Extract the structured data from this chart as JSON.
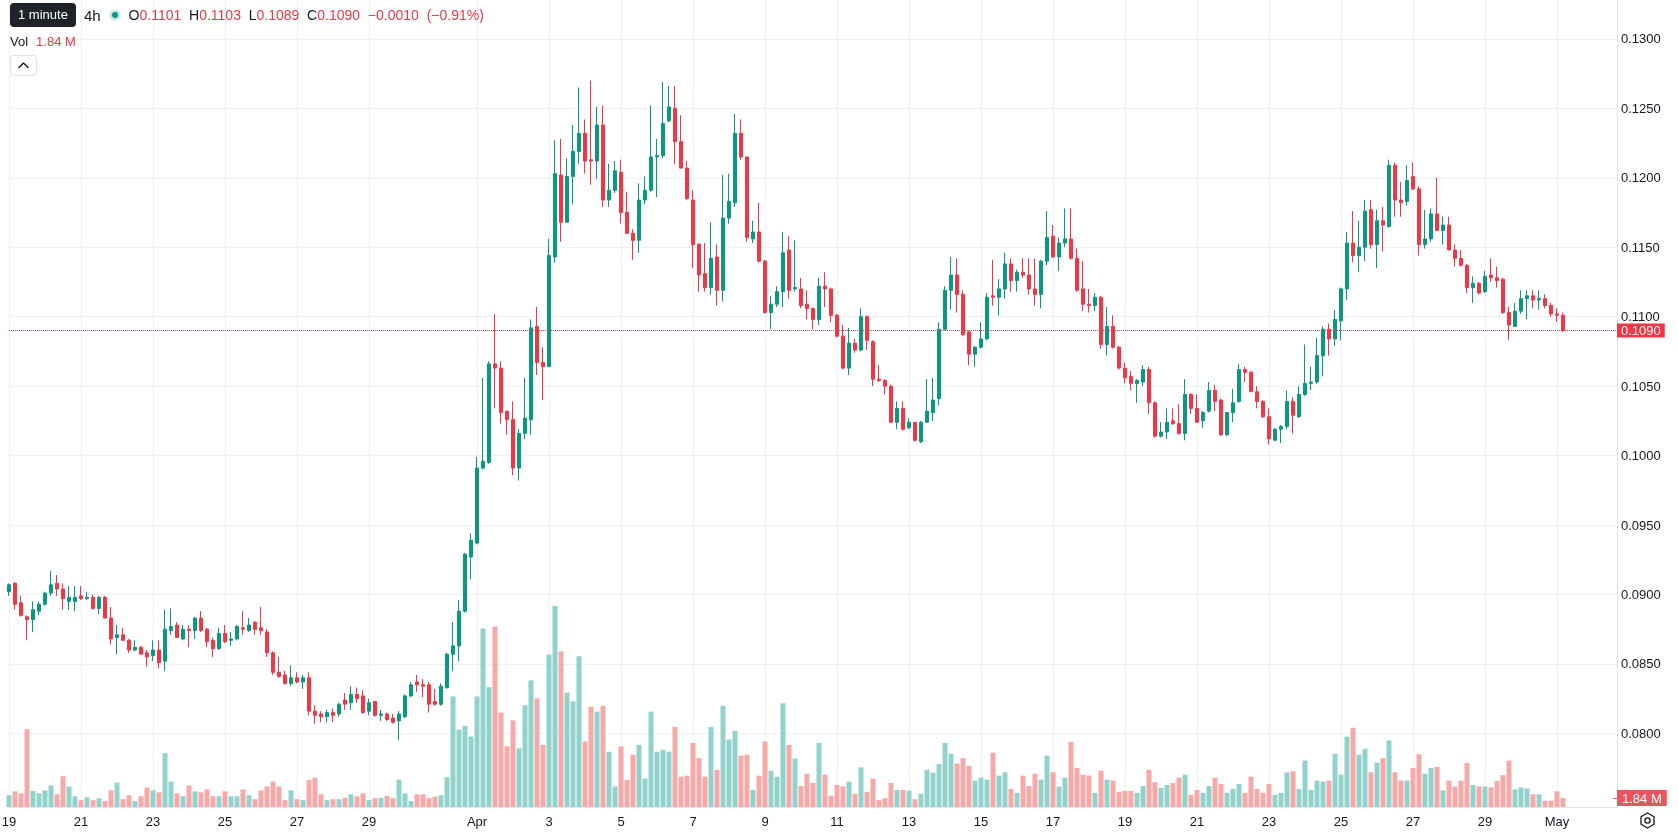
{
  "chart_data": {
    "type": "candlestick",
    "title": "4h",
    "annotations": [
      "1 minute",
      "O0.1101 H0.1103 L0.1089 C0.1090 −0.0010 (−0.91%)",
      "Vol",
      "1.84 M"
    ],
    "categories": [
      "19",
      null,
      null,
      null,
      null,
      null,
      null,
      null,
      null,
      null,
      null,
      null,
      "21",
      null,
      null,
      null,
      null,
      null,
      null,
      null,
      null,
      null,
      null,
      null,
      "23",
      null,
      null,
      null,
      null,
      null,
      null,
      null,
      null,
      null,
      null,
      null,
      "25",
      null,
      null,
      null,
      null,
      null,
      null,
      null,
      null,
      null,
      null,
      null,
      "27",
      null,
      null,
      null,
      null,
      null,
      null,
      null,
      null,
      null,
      null,
      null,
      "29",
      null,
      null,
      null,
      null,
      null,
      null,
      null,
      null,
      null,
      null,
      null,
      null,
      null,
      null,
      null,
      null,
      null,
      "Apr",
      null,
      null,
      null,
      null,
      null,
      null,
      null,
      null,
      null,
      null,
      null,
      "3",
      null,
      null,
      null,
      null,
      null,
      null,
      null,
      null,
      null,
      null,
      null,
      "5",
      null,
      null,
      null,
      null,
      null,
      null,
      null,
      null,
      null,
      null,
      null,
      "7",
      null,
      null,
      null,
      null,
      null,
      null,
      null,
      null,
      null,
      null,
      null,
      "9",
      null,
      null,
      null,
      null,
      null,
      null,
      null,
      null,
      null,
      null,
      null,
      "11",
      null,
      null,
      null,
      null,
      null,
      null,
      null,
      null,
      null,
      null,
      null,
      "13",
      null,
      null,
      null,
      null,
      null,
      null,
      null,
      null,
      null,
      null,
      null,
      "15",
      null,
      null,
      null,
      null,
      null,
      null,
      null,
      null,
      null,
      null,
      null,
      "17",
      null,
      null,
      null,
      null,
      null,
      null,
      null,
      null,
      null,
      null,
      null,
      "19",
      null,
      null,
      null,
      null,
      null,
      null,
      null,
      null,
      null,
      null,
      null,
      "21",
      null,
      null,
      null,
      null,
      null,
      null,
      null,
      null,
      null,
      null,
      null,
      "23",
      null,
      null,
      null,
      null,
      null,
      null,
      null,
      null,
      null,
      null,
      null,
      "25",
      null,
      null,
      null,
      null,
      null,
      null,
      null,
      null,
      null,
      null,
      null,
      "27",
      null,
      null,
      null,
      null,
      null,
      null,
      null,
      null,
      null,
      null,
      null,
      "29",
      null,
      null,
      null,
      null,
      null,
      null,
      null,
      null,
      null,
      null,
      null,
      "May",
      null,
      null,
      null,
      null,
      null,
      null,
      null,
      null,
      null,
      null
    ],
    "ohlc": [
      [
        0.0902,
        0.0908,
        0.0899,
        0.0907
      ],
      [
        0.0908,
        0.0909,
        0.0889,
        0.0893
      ],
      [
        0.0894,
        0.0899,
        0.0884,
        0.0885
      ],
      [
        0.0884,
        0.0885,
        0.0867,
        0.0882
      ],
      [
        0.0882,
        0.0895,
        0.0873,
        0.0889
      ],
      [
        0.0888,
        0.0895,
        0.0885,
        0.0893
      ],
      [
        0.0893,
        0.0902,
        0.0892,
        0.0901
      ],
      [
        0.0901,
        0.0917,
        0.0899,
        0.0907
      ],
      [
        0.0908,
        0.0914,
        0.0899,
        0.0904
      ],
      [
        0.0904,
        0.0908,
        0.0889,
        0.0897
      ],
      [
        0.0895,
        0.0906,
        0.0889,
        0.0898
      ],
      [
        0.0895,
        0.0906,
        0.0888,
        0.0898
      ],
      [
        0.0899,
        0.0906,
        0.0896,
        0.0897
      ],
      [
        0.0897,
        0.0902,
        0.0896,
        0.0898
      ],
      [
        0.0898,
        0.09,
        0.0889,
        0.089
      ],
      [
        0.089,
        0.0899,
        0.0886,
        0.0898
      ],
      [
        0.0898,
        0.0899,
        0.0883,
        0.0883
      ],
      [
        0.0883,
        0.0891,
        0.0864,
        0.0868
      ],
      [
        0.0869,
        0.0878,
        0.0857,
        0.0871
      ],
      [
        0.0871,
        0.0876,
        0.0867,
        0.0867
      ],
      [
        0.0867,
        0.0868,
        0.0858,
        0.086
      ],
      [
        0.086,
        0.0867,
        0.0859,
        0.0862
      ],
      [
        0.0862,
        0.0863,
        0.0857,
        0.0857
      ],
      [
        0.0858,
        0.086,
        0.0848,
        0.0855
      ],
      [
        0.0856,
        0.0867,
        0.0852,
        0.086
      ],
      [
        0.086,
        0.0867,
        0.0847,
        0.0851
      ],
      [
        0.0852,
        0.0889,
        0.0845,
        0.0875
      ],
      [
        0.0874,
        0.089,
        0.0871,
        0.0877
      ],
      [
        0.0878,
        0.088,
        0.0869,
        0.0869
      ],
      [
        0.0868,
        0.0878,
        0.0867,
        0.0875
      ],
      [
        0.0875,
        0.0878,
        0.0862,
        0.0874
      ],
      [
        0.0874,
        0.0884,
        0.0868,
        0.0883
      ],
      [
        0.0883,
        0.0888,
        0.0873,
        0.0874
      ],
      [
        0.0875,
        0.0876,
        0.0862,
        0.0866
      ],
      [
        0.0867,
        0.0869,
        0.0855,
        0.0861
      ],
      [
        0.0861,
        0.0876,
        0.086,
        0.0872
      ],
      [
        0.0872,
        0.0878,
        0.0865,
        0.0866
      ],
      [
        0.0867,
        0.0873,
        0.0863,
        0.0868
      ],
      [
        0.0868,
        0.0878,
        0.0867,
        0.0877
      ],
      [
        0.0876,
        0.0888,
        0.0871,
        0.0875
      ],
      [
        0.0874,
        0.0883,
        0.0873,
        0.0878
      ],
      [
        0.088,
        0.0881,
        0.0871,
        0.0875
      ],
      [
        0.0876,
        0.0891,
        0.0871,
        0.0874
      ],
      [
        0.0873,
        0.0875,
        0.0855,
        0.0858
      ],
      [
        0.0858,
        0.0859,
        0.0842,
        0.0844
      ],
      [
        0.0844,
        0.0855,
        0.084,
        0.0841
      ],
      [
        0.0842,
        0.0845,
        0.0835,
        0.0836
      ],
      [
        0.0836,
        0.0849,
        0.0834,
        0.084
      ],
      [
        0.084,
        0.0844,
        0.0836,
        0.0837
      ],
      [
        0.0837,
        0.0842,
        0.0832,
        0.084
      ],
      [
        0.084,
        0.0844,
        0.0813,
        0.0816
      ],
      [
        0.0816,
        0.082,
        0.0807,
        0.0813
      ],
      [
        0.0814,
        0.0816,
        0.0808,
        0.0812
      ],
      [
        0.0812,
        0.0817,
        0.0808,
        0.0815
      ],
      [
        0.0815,
        0.0818,
        0.0808,
        0.0813
      ],
      [
        0.0814,
        0.0822,
        0.0812,
        0.0821
      ],
      [
        0.0824,
        0.0829,
        0.0817,
        0.0821
      ],
      [
        0.0822,
        0.0834,
        0.0817,
        0.0828
      ],
      [
        0.0828,
        0.0833,
        0.0822,
        0.0825
      ],
      [
        0.0827,
        0.0831,
        0.0814,
        0.0815
      ],
      [
        0.0816,
        0.0825,
        0.0813,
        0.0822
      ],
      [
        0.0823,
        0.0823,
        0.0812,
        0.0813
      ],
      [
        0.0813,
        0.0817,
        0.0809,
        0.0814
      ],
      [
        0.0814,
        0.0815,
        0.0809,
        0.081
      ],
      [
        0.0811,
        0.0814,
        0.0807,
        0.0808
      ],
      [
        0.0809,
        0.0816,
        0.0795,
        0.0814
      ],
      [
        0.0812,
        0.0828,
        0.0811,
        0.0827
      ],
      [
        0.0827,
        0.0837,
        0.0826,
        0.0835
      ],
      [
        0.0837,
        0.0842,
        0.083,
        0.0835
      ],
      [
        0.0835,
        0.0839,
        0.0826,
        0.0834
      ],
      [
        0.0835,
        0.0837,
        0.0815,
        0.0821
      ],
      [
        0.0823,
        0.0832,
        0.082,
        0.0821
      ],
      [
        0.0821,
        0.0836,
        0.082,
        0.0834
      ],
      [
        0.0833,
        0.0858,
        0.0832,
        0.0857
      ],
      [
        0.0857,
        0.088,
        0.0845,
        0.0863
      ],
      [
        0.0863,
        0.0896,
        0.0852,
        0.0888
      ],
      [
        0.0888,
        0.093,
        0.0887,
        0.0929
      ],
      [
        0.0927,
        0.0944,
        0.0911,
        0.0939
      ],
      [
        0.0937,
        0.0999,
        0.0936,
        0.0991
      ],
      [
        0.0991,
        0.1056,
        0.099,
        0.0996
      ],
      [
        0.0995,
        0.1068,
        0.0994,
        0.1066
      ],
      [
        0.1066,
        0.1102,
        0.1034,
        0.1063
      ],
      [
        0.1063,
        0.1068,
        0.1023,
        0.1031
      ],
      [
        0.1032,
        0.1032,
        0.1015,
        0.1026
      ],
      [
        0.1026,
        0.1039,
        0.0986,
        0.0991
      ],
      [
        0.0991,
        0.1019,
        0.0982,
        0.1016
      ],
      [
        0.1016,
        0.1056,
        0.1012,
        0.1027
      ],
      [
        0.1026,
        0.1098,
        0.1015,
        0.1092
      ],
      [
        0.1093,
        0.1107,
        0.1058,
        0.1067
      ],
      [
        0.1067,
        0.1078,
        0.104,
        0.1064
      ],
      [
        0.1064,
        0.1156,
        0.1064,
        0.1144
      ],
      [
        0.1143,
        0.1227,
        0.1139,
        0.1203
      ],
      [
        0.1202,
        0.1228,
        0.1154,
        0.1168
      ],
      [
        0.1168,
        0.1214,
        0.1168,
        0.1201
      ],
      [
        0.1201,
        0.1238,
        0.1181,
        0.1219
      ],
      [
        0.1219,
        0.1265,
        0.121,
        0.1232
      ],
      [
        0.1232,
        0.1242,
        0.1203,
        0.1212
      ],
      [
        0.1213,
        0.127,
        0.1195,
        0.1212
      ],
      [
        0.1212,
        0.1251,
        0.1199,
        0.1238
      ],
      [
        0.1238,
        0.1252,
        0.1179,
        0.1184
      ],
      [
        0.1184,
        0.121,
        0.1179,
        0.1191
      ],
      [
        0.1191,
        0.1212,
        0.1189,
        0.1205
      ],
      [
        0.1204,
        0.1213,
        0.1167,
        0.1175
      ],
      [
        0.1175,
        0.119,
        0.116,
        0.116
      ],
      [
        0.116,
        0.1163,
        0.1141,
        0.1155
      ],
      [
        0.1155,
        0.1196,
        0.1146,
        0.1184
      ],
      [
        0.1184,
        0.1201,
        0.1181,
        0.1191
      ],
      [
        0.1191,
        0.1252,
        0.119,
        0.1215
      ],
      [
        0.1215,
        0.1228,
        0.1186,
        0.1216
      ],
      [
        0.1216,
        0.1269,
        0.1214,
        0.1239
      ],
      [
        0.1241,
        0.1266,
        0.124,
        0.1251
      ],
      [
        0.125,
        0.1266,
        0.121,
        0.1226
      ],
      [
        0.1226,
        0.1245,
        0.1207,
        0.1207
      ],
      [
        0.1207,
        0.1212,
        0.1184,
        0.1185
      ],
      [
        0.1184,
        0.1191,
        0.1135,
        0.1152
      ],
      [
        0.1152,
        0.1153,
        0.1118,
        0.113
      ],
      [
        0.1131,
        0.1153,
        0.1118,
        0.1121
      ],
      [
        0.1121,
        0.1168,
        0.1116,
        0.1142
      ],
      [
        0.1143,
        0.1152,
        0.1108,
        0.1119
      ],
      [
        0.1119,
        0.1202,
        0.1111,
        0.1171
      ],
      [
        0.1171,
        0.1203,
        0.1167,
        0.1183
      ],
      [
        0.1182,
        0.1246,
        0.1179,
        0.1232
      ],
      [
        0.1232,
        0.1242,
        0.1213,
        0.1215
      ],
      [
        0.1215,
        0.1215,
        0.1154,
        0.1157
      ],
      [
        0.1156,
        0.1169,
        0.1153,
        0.1161
      ],
      [
        0.1161,
        0.1182,
        0.1139,
        0.114
      ],
      [
        0.114,
        0.1141,
        0.1102,
        0.1103
      ],
      [
        0.1103,
        0.1115,
        0.1091,
        0.1109
      ],
      [
        0.1109,
        0.1122,
        0.1107,
        0.1118
      ],
      [
        0.1118,
        0.1161,
        0.1107,
        0.1146
      ],
      [
        0.1148,
        0.1158,
        0.1113,
        0.1119
      ],
      [
        0.112,
        0.1155,
        0.1118,
        0.1121
      ],
      [
        0.112,
        0.1128,
        0.1106,
        0.1108
      ],
      [
        0.1109,
        0.1119,
        0.1098,
        0.1106
      ],
      [
        0.1106,
        0.1106,
        0.1091,
        0.1098
      ],
      [
        0.1098,
        0.1128,
        0.1094,
        0.1122
      ],
      [
        0.1122,
        0.1132,
        0.1107,
        0.112
      ],
      [
        0.112,
        0.1121,
        0.1096,
        0.1101
      ],
      [
        0.1101,
        0.1102,
        0.1085,
        0.1086
      ],
      [
        0.1086,
        0.1094,
        0.1062,
        0.1063
      ],
      [
        0.1063,
        0.1092,
        0.1058,
        0.1081
      ],
      [
        0.1081,
        0.1084,
        0.1074,
        0.1076
      ],
      [
        0.1076,
        0.1106,
        0.1075,
        0.11
      ],
      [
        0.11,
        0.1101,
        0.1076,
        0.1083
      ],
      [
        0.1082,
        0.1083,
        0.105,
        0.1055
      ],
      [
        0.1055,
        0.1065,
        0.1053,
        0.1054
      ],
      [
        0.1054,
        0.1055,
        0.1044,
        0.105
      ],
      [
        0.105,
        0.1051,
        0.1024,
        0.1024
      ],
      [
        0.1024,
        0.1039,
        0.1019,
        0.1034
      ],
      [
        0.1034,
        0.1039,
        0.1018,
        0.1019
      ],
      [
        0.102,
        0.1027,
        0.1019,
        0.1024
      ],
      [
        0.1024,
        0.1024,
        0.101,
        0.1011
      ],
      [
        0.101,
        0.1025,
        0.1009,
        0.1024
      ],
      [
        0.1024,
        0.1055,
        0.1024,
        0.1032
      ],
      [
        0.1031,
        0.1056,
        0.1025,
        0.104
      ],
      [
        0.1041,
        0.1096,
        0.1036,
        0.1091
      ],
      [
        0.1091,
        0.1122,
        0.109,
        0.1119
      ],
      [
        0.1119,
        0.1143,
        0.1105,
        0.113
      ],
      [
        0.113,
        0.1142,
        0.1103,
        0.1116
      ],
      [
        0.1116,
        0.1119,
        0.1086,
        0.1087
      ],
      [
        0.1089,
        0.109,
        0.1065,
        0.1073
      ],
      [
        0.1073,
        0.1079,
        0.1064,
        0.1078
      ],
      [
        0.1078,
        0.1096,
        0.1077,
        0.1084
      ],
      [
        0.1084,
        0.1117,
        0.1083,
        0.1114
      ],
      [
        0.1115,
        0.1141,
        0.1108,
        0.1114
      ],
      [
        0.1114,
        0.1127,
        0.1101,
        0.112
      ],
      [
        0.112,
        0.1146,
        0.1113,
        0.1138
      ],
      [
        0.1138,
        0.1142,
        0.1118,
        0.1126
      ],
      [
        0.1126,
        0.1134,
        0.1118,
        0.1132
      ],
      [
        0.1132,
        0.1142,
        0.1128,
        0.113
      ],
      [
        0.113,
        0.1142,
        0.1116,
        0.112
      ],
      [
        0.112,
        0.1142,
        0.1108,
        0.1116
      ],
      [
        0.1116,
        0.1141,
        0.1106,
        0.114
      ],
      [
        0.114,
        0.1176,
        0.1137,
        0.1157
      ],
      [
        0.1158,
        0.1166,
        0.1142,
        0.1143
      ],
      [
        0.1143,
        0.1157,
        0.1133,
        0.1153
      ],
      [
        0.1153,
        0.1178,
        0.115,
        0.1156
      ],
      [
        0.1156,
        0.1178,
        0.1141,
        0.1142
      ],
      [
        0.1142,
        0.1149,
        0.1118,
        0.1119
      ],
      [
        0.112,
        0.114,
        0.1104,
        0.1109
      ],
      [
        0.1109,
        0.112,
        0.1103,
        0.1108
      ],
      [
        0.1108,
        0.1117,
        0.1104,
        0.1114
      ],
      [
        0.1114,
        0.1115,
        0.1077,
        0.108
      ],
      [
        0.108,
        0.1107,
        0.1072,
        0.1093
      ],
      [
        0.1093,
        0.1101,
        0.1077,
        0.1078
      ],
      [
        0.1078,
        0.1079,
        0.1062,
        0.1063
      ],
      [
        0.1063,
        0.1067,
        0.1052,
        0.1056
      ],
      [
        0.1057,
        0.1061,
        0.1047,
        0.1052
      ],
      [
        0.1052,
        0.1055,
        0.1038,
        0.1054
      ],
      [
        0.1053,
        0.1065,
        0.105,
        0.1062
      ],
      [
        0.1062,
        0.1064,
        0.103,
        0.1038
      ],
      [
        0.1038,
        0.1039,
        0.1013,
        0.1014
      ],
      [
        0.1014,
        0.1024,
        0.1013,
        0.1017
      ],
      [
        0.1017,
        0.1034,
        0.1012,
        0.1024
      ],
      [
        0.1025,
        0.1034,
        0.1022,
        0.1023
      ],
      [
        0.1023,
        0.1037,
        0.1015,
        0.1016
      ],
      [
        0.1016,
        0.1055,
        0.1011,
        0.1044
      ],
      [
        0.1044,
        0.1045,
        0.103,
        0.1034
      ],
      [
        0.1034,
        0.1044,
        0.1024,
        0.1024
      ],
      [
        0.1025,
        0.1032,
        0.102,
        0.1031
      ],
      [
        0.1032,
        0.1053,
        0.1031,
        0.1047
      ],
      [
        0.1047,
        0.1051,
        0.1032,
        0.1039
      ],
      [
        0.104,
        0.1041,
        0.1014,
        0.1015
      ],
      [
        0.1015,
        0.1031,
        0.1014,
        0.1031
      ],
      [
        0.1031,
        0.1048,
        0.1024,
        0.1038
      ],
      [
        0.1039,
        0.1066,
        0.1038,
        0.1062
      ],
      [
        0.1062,
        0.1064,
        0.1053,
        0.106
      ],
      [
        0.106,
        0.1061,
        0.1046,
        0.1046
      ],
      [
        0.1046,
        0.105,
        0.1034,
        0.1039
      ],
      [
        0.1039,
        0.104,
        0.1027,
        0.1028
      ],
      [
        0.1028,
        0.1034,
        0.1008,
        0.1012
      ],
      [
        0.1011,
        0.102,
        0.1011,
        0.1019
      ],
      [
        0.1019,
        0.1022,
        0.1009,
        0.1021
      ],
      [
        0.1021,
        0.1047,
        0.1019,
        0.1039
      ],
      [
        0.1039,
        0.1042,
        0.1016,
        0.1029
      ],
      [
        0.1028,
        0.105,
        0.1027,
        0.1044
      ],
      [
        0.1044,
        0.108,
        0.1043,
        0.1052
      ],
      [
        0.1052,
        0.1064,
        0.1047,
        0.1053
      ],
      [
        0.1053,
        0.1085,
        0.1052,
        0.1072
      ],
      [
        0.1072,
        0.1093,
        0.1057,
        0.1091
      ],
      [
        0.1091,
        0.1095,
        0.1072,
        0.1084
      ],
      [
        0.1084,
        0.1105,
        0.1079,
        0.1098
      ],
      [
        0.1097,
        0.1121,
        0.1083,
        0.112
      ],
      [
        0.112,
        0.1161,
        0.1112,
        0.1153
      ],
      [
        0.1153,
        0.1176,
        0.1139,
        0.1144
      ],
      [
        0.1144,
        0.1169,
        0.1132,
        0.115
      ],
      [
        0.115,
        0.1184,
        0.114,
        0.1176
      ],
      [
        0.1177,
        0.1184,
        0.1149,
        0.1152
      ],
      [
        0.1152,
        0.1177,
        0.1135,
        0.1169
      ],
      [
        0.1169,
        0.1179,
        0.1147,
        0.1166
      ],
      [
        0.1165,
        0.1213,
        0.1164,
        0.1209
      ],
      [
        0.1209,
        0.1211,
        0.1172,
        0.1184
      ],
      [
        0.1184,
        0.1197,
        0.1172,
        0.1182
      ],
      [
        0.1183,
        0.1209,
        0.118,
        0.1198
      ],
      [
        0.1201,
        0.1211,
        0.1191,
        0.1192
      ],
      [
        0.1192,
        0.1194,
        0.1144,
        0.1152
      ],
      [
        0.1152,
        0.1177,
        0.1149,
        0.1156
      ],
      [
        0.1156,
        0.1178,
        0.1154,
        0.1174
      ],
      [
        0.1174,
        0.12,
        0.1162,
        0.1162
      ],
      [
        0.1162,
        0.1172,
        0.1152,
        0.1166
      ],
      [
        0.1166,
        0.1172,
        0.1148,
        0.1148
      ],
      [
        0.1148,
        0.1152,
        0.1136,
        0.1142
      ],
      [
        0.1142,
        0.1148,
        0.1136,
        0.1137
      ],
      [
        0.1137,
        0.1138,
        0.1117,
        0.1121
      ],
      [
        0.1121,
        0.1129,
        0.111,
        0.1124
      ],
      [
        0.1124,
        0.1125,
        0.1116,
        0.1117
      ],
      [
        0.1118,
        0.1133,
        0.1117,
        0.1129
      ],
      [
        0.113,
        0.1142,
        0.1125,
        0.1128
      ],
      [
        0.1128,
        0.1136,
        0.1121,
        0.1126
      ],
      [
        0.1127,
        0.1128,
        0.1102,
        0.1103
      ],
      [
        0.1103,
        0.1107,
        0.1083,
        0.1094
      ],
      [
        0.1093,
        0.111,
        0.1093,
        0.1104
      ],
      [
        0.1104,
        0.1119,
        0.1102,
        0.1113
      ],
      [
        0.1113,
        0.1119,
        0.1098,
        0.1115
      ],
      [
        0.1115,
        0.1119,
        0.1106,
        0.1112
      ],
      [
        0.1112,
        0.1119,
        0.1105,
        0.1113
      ],
      [
        0.1113,
        0.1116,
        0.1106,
        0.1108
      ],
      [
        0.1108,
        0.111,
        0.11,
        0.1102
      ],
      [
        0.1102,
        0.1106,
        0.1096,
        0.1101
      ],
      [
        0.1101,
        0.1103,
        0.1089,
        0.109
      ],
      null,
      null,
      null,
      null,
      null,
      null,
      null,
      null,
      null
    ],
    "colors": [
      "#089981",
      "#f23645",
      "#f23645",
      "#f23645",
      "#089981",
      "#089981",
      "#089981",
      "#089981",
      "#f23645",
      "#f23645",
      "#089981",
      "#089981",
      "#f23645",
      "#089981",
      "#f23645",
      "#089981",
      "#f23645",
      "#f23645",
      "#089981",
      "#f23645",
      "#f23645",
      "#089981",
      "#f23645",
      "#f23645",
      "#089981",
      "#f23645",
      "#089981",
      "#089981",
      "#f23645",
      "#089981",
      "#f23645",
      "#089981",
      "#f23645",
      "#f23645",
      "#f23645",
      "#089981",
      "#f23645",
      "#089981",
      "#089981",
      "#f23645",
      "#089981",
      "#f23645",
      "#f23645",
      "#f23645",
      "#f23645",
      "#f23645",
      "#f23645",
      "#089981",
      "#f23645",
      "#089981",
      "#f23645",
      "#f23645",
      "#f23645",
      "#089981",
      "#f23645",
      "#089981",
      "#f23645",
      "#089981",
      "#f23645",
      "#f23645",
      "#089981",
      "#f23645",
      "#089981",
      "#f23645",
      "#f23645",
      "#089981",
      "#089981",
      "#089981",
      "#f23645",
      "#f23645",
      "#f23645",
      "#f23645",
      "#089981",
      "#089981",
      "#089981",
      "#089981",
      "#089981",
      "#089981",
      "#089981",
      "#089981",
      "#089981",
      "#f23645",
      "#f23645",
      "#f23645",
      "#f23645",
      "#089981",
      "#089981",
      "#089981",
      "#f23645",
      "#f23645",
      "#089981",
      "#089981",
      "#f23645",
      "#089981",
      "#089981",
      "#089981",
      "#f23645",
      "#f23645",
      "#089981",
      "#f23645",
      "#089981",
      "#089981",
      "#f23645",
      "#f23645",
      "#f23645",
      "#089981",
      "#089981",
      "#089981",
      "#089981",
      "#089981",
      "#089981",
      "#f23645",
      "#f23645",
      "#f23645",
      "#f23645",
      "#f23645",
      "#f23645",
      "#089981",
      "#f23645",
      "#089981",
      "#089981",
      "#089981",
      "#f23645",
      "#f23645",
      "#089981",
      "#f23645",
      "#f23645",
      "#089981",
      "#089981",
      "#089981",
      "#f23645",
      "#089981",
      "#f23645",
      "#f23645",
      "#f23645",
      "#089981",
      "#f23645",
      "#f23645",
      "#f23645",
      "#f23645",
      "#089981",
      "#f23645",
      "#089981",
      "#f23645",
      "#f23645",
      "#f23645",
      "#f23645",
      "#f23645",
      "#089981",
      "#f23645",
      "#089981",
      "#f23645",
      "#089981",
      "#089981",
      "#089981",
      "#089981",
      "#089981",
      "#089981",
      "#f23645",
      "#f23645",
      "#f23645",
      "#089981",
      "#089981",
      "#089981",
      "#f23645",
      "#089981",
      "#089981",
      "#f23645",
      "#089981",
      "#f23645",
      "#f23645",
      "#f23645",
      "#089981",
      "#089981",
      "#f23645",
      "#089981",
      "#089981",
      "#f23645",
      "#f23645",
      "#f23645",
      "#f23645",
      "#089981",
      "#f23645",
      "#089981",
      "#f23645",
      "#f23645",
      "#f23645",
      "#f23645",
      "#089981",
      "#089981",
      "#f23645",
      "#f23645",
      "#089981",
      "#089981",
      "#f23645",
      "#f23645",
      "#089981",
      "#f23645",
      "#f23645",
      "#089981",
      "#089981",
      "#f23645",
      "#f23645",
      "#089981",
      "#089981",
      "#089981",
      "#f23645",
      "#f23645",
      "#f23645",
      "#f23645",
      "#f23645",
      "#089981",
      "#089981",
      "#089981",
      "#f23645",
      "#089981",
      "#089981",
      "#089981",
      "#089981",
      "#089981",
      "#f23645",
      "#089981",
      "#089981",
      "#089981",
      "#f23645",
      "#089981",
      "#089981",
      "#f23645",
      "#089981",
      "#f23645",
      "#089981",
      "#f23645",
      "#f23645",
      "#089981",
      "#f23645",
      "#f23645",
      "#089981",
      "#089981",
      "#f23645",
      "#089981",
      "#f23645",
      "#f23645",
      "#f23645",
      "#f23645",
      "#089981",
      "#f23645",
      "#089981",
      "#f23645",
      "#f23645",
      "#f23645",
      "#f23645",
      "#089981",
      "#089981",
      "#089981",
      "#f23645",
      "#089981",
      "#f23645",
      "#f23645",
      "#f23645",
      "#f23645",
      null,
      null,
      null,
      null,
      null,
      null,
      null,
      null,
      null
    ],
    "series": [
      {
        "type": "bar",
        "axis": "y2",
        "values": [
          2.4,
          3.2,
          2.8,
          15.9,
          3.3,
          2.8,
          3.4,
          4.4,
          2.6,
          6.3,
          4.2,
          2.2,
          1.4,
          2.0,
          1.4,
          1.8,
          1.2,
          3.4,
          5.0,
          1.6,
          2.4,
          1.2,
          2.2,
          4.0,
          3.4,
          3.0,
          11.0,
          5.2,
          2.8,
          2.2,
          4.4,
          3.2,
          3.0,
          3.6,
          2.2,
          2.2,
          3.2,
          2.2,
          2.2,
          3.6,
          2.4,
          1.6,
          3.4,
          4.2,
          5.2,
          4.2,
          1.4,
          3.4,
          1.6,
          1.4,
          5.5,
          6.0,
          2.6,
          1.4,
          1.6,
          1.6,
          1.9,
          2.6,
          2.2,
          2.8,
          1.4,
          1.8,
          1.9,
          2.3,
          1.8,
          5.6,
          2.8,
          1.2,
          2.6,
          2.6,
          1.8,
          2.1,
          2.4,
          6.1,
          22.6,
          15.8,
          16.6,
          14.4,
          22.6,
          36.5,
          24.5,
          36.9,
          19.3,
          12.4,
          17.7,
          12.0,
          20.8,
          25.9,
          22.2,
          12.7,
          31.2,
          41.1,
          31.8,
          23.4,
          21.6,
          30.8,
          13.4,
          20.5,
          19.5,
          20.7,
          11.3,
          4.2,
          12.4,
          5.5,
          10.7,
          12.7,
          5.8,
          19.5,
          11.3,
          11.7,
          11.3,
          16.4,
          6.2,
          6.4,
          13.1,
          10.0,
          6.2,
          16.4,
          7.6,
          20.7,
          13.8,
          15.6,
          10.5,
          10.7,
          3.5,
          6.4,
          13.4,
          7.4,
          6.2,
          21.2,
          12.7,
          9.9,
          4.3,
          6.8,
          4.9,
          13.1,
          6.6,
          2.3,
          4.5,
          4.2,
          5.2,
          2.7,
          8.1,
          3.1,
          5.8,
          1.4,
          1.8,
          4.9,
          3.5,
          3.5,
          3.3,
          1.6,
          2.7,
          7.6,
          7.0,
          8.8,
          13.1,
          10.9,
          8.9,
          10.0,
          8.4,
          5.4,
          6.0,
          5.6,
          11.1,
          6.4,
          7.1,
          3.7,
          2.9,
          6.4,
          4.3,
          6.8,
          5.6,
          10.5,
          7.1,
          4.2,
          6.0,
          13.3,
          8.0,
          6.6,
          6.4,
          2.9,
          7.4,
          5.6,
          5.4,
          3.1,
          3.3,
          3.3,
          2.9,
          4.3,
          7.6,
          5.1,
          3.9,
          4.5,
          4.9,
          6.0,
          6.6,
          2.5,
          3.5,
          2.9,
          4.3,
          6.0,
          4.7,
          2.9,
          3.7,
          4.7,
          2.9,
          6.2,
          3.7,
          2.9,
          4.7,
          2.5,
          2.9,
          7.1,
          7.3,
          3.7,
          9.5,
          3.5,
          5.4,
          5.2,
          5.4,
          10.9,
          6.6,
          14.4,
          16.2,
          10.7,
          11.9,
          7.1,
          9.1,
          10.0,
          13.6,
          7.1,
          5.4,
          5.4,
          8.0,
          10.8,
          6.8,
          8.0,
          8.2,
          3.4,
          5.4,
          4.2,
          5.4,
          9.0,
          4.5,
          4.2,
          4.2,
          4.0,
          5.3,
          6.5,
          9.5,
          3.6,
          4.0,
          3.8,
          2.6,
          2.6,
          1.3,
          1.3,
          3.2,
          1.84,
          null,
          null,
          null,
          null,
          null,
          null,
          null,
          null,
          null
        ],
        "colors": [
          "#92d2cc",
          "#f7a9a7",
          "#f7a9a7",
          "#f7a9a7",
          "#92d2cc",
          "#92d2cc",
          "#92d2cc",
          "#92d2cc",
          "#f7a9a7",
          "#f7a9a7",
          "#92d2cc",
          "#92d2cc",
          "#f7a9a7",
          "#92d2cc",
          "#f7a9a7",
          "#92d2cc",
          "#f7a9a7",
          "#f7a9a7",
          "#92d2cc",
          "#f7a9a7",
          "#f7a9a7",
          "#92d2cc",
          "#f7a9a7",
          "#f7a9a7",
          "#92d2cc",
          "#f7a9a7",
          "#92d2cc",
          "#92d2cc",
          "#f7a9a7",
          "#92d2cc",
          "#f7a9a7",
          "#92d2cc",
          "#f7a9a7",
          "#f7a9a7",
          "#f7a9a7",
          "#92d2cc",
          "#f7a9a7",
          "#92d2cc",
          "#92d2cc",
          "#f7a9a7",
          "#92d2cc",
          "#f7a9a7",
          "#f7a9a7",
          "#f7a9a7",
          "#f7a9a7",
          "#f7a9a7",
          "#f7a9a7",
          "#92d2cc",
          "#f7a9a7",
          "#92d2cc",
          "#f7a9a7",
          "#f7a9a7",
          "#f7a9a7",
          "#92d2cc",
          "#f7a9a7",
          "#92d2cc",
          "#f7a9a7",
          "#92d2cc",
          "#f7a9a7",
          "#f7a9a7",
          "#92d2cc",
          "#f7a9a7",
          "#92d2cc",
          "#f7a9a7",
          "#f7a9a7",
          "#92d2cc",
          "#92d2cc",
          "#92d2cc",
          "#f7a9a7",
          "#f7a9a7",
          "#f7a9a7",
          "#f7a9a7",
          "#92d2cc",
          "#92d2cc",
          "#92d2cc",
          "#92d2cc",
          "#92d2cc",
          "#92d2cc",
          "#92d2cc",
          "#92d2cc",
          "#92d2cc",
          "#f7a9a7",
          "#f7a9a7",
          "#f7a9a7",
          "#f7a9a7",
          "#92d2cc",
          "#92d2cc",
          "#92d2cc",
          "#f7a9a7",
          "#f7a9a7",
          "#92d2cc",
          "#92d2cc",
          "#f7a9a7",
          "#92d2cc",
          "#92d2cc",
          "#92d2cc",
          "#f7a9a7",
          "#f7a9a7",
          "#92d2cc",
          "#f7a9a7",
          "#92d2cc",
          "#92d2cc",
          "#f7a9a7",
          "#f7a9a7",
          "#f7a9a7",
          "#92d2cc",
          "#92d2cc",
          "#92d2cc",
          "#92d2cc",
          "#92d2cc",
          "#92d2cc",
          "#f7a9a7",
          "#f7a9a7",
          "#f7a9a7",
          "#f7a9a7",
          "#f7a9a7",
          "#f7a9a7",
          "#92d2cc",
          "#f7a9a7",
          "#92d2cc",
          "#92d2cc",
          "#92d2cc",
          "#f7a9a7",
          "#f7a9a7",
          "#92d2cc",
          "#f7a9a7",
          "#f7a9a7",
          "#92d2cc",
          "#92d2cc",
          "#92d2cc",
          "#f7a9a7",
          "#92d2cc",
          "#f7a9a7",
          "#f7a9a7",
          "#f7a9a7",
          "#92d2cc",
          "#f7a9a7",
          "#f7a9a7",
          "#f7a9a7",
          "#f7a9a7",
          "#92d2cc",
          "#f7a9a7",
          "#92d2cc",
          "#f7a9a7",
          "#f7a9a7",
          "#f7a9a7",
          "#f7a9a7",
          "#f7a9a7",
          "#92d2cc",
          "#f7a9a7",
          "#92d2cc",
          "#f7a9a7",
          "#92d2cc",
          "#92d2cc",
          "#92d2cc",
          "#92d2cc",
          "#92d2cc",
          "#92d2cc",
          "#f7a9a7",
          "#f7a9a7",
          "#f7a9a7",
          "#92d2cc",
          "#92d2cc",
          "#92d2cc",
          "#f7a9a7",
          "#92d2cc",
          "#92d2cc",
          "#f7a9a7",
          "#92d2cc",
          "#f7a9a7",
          "#f7a9a7",
          "#f7a9a7",
          "#92d2cc",
          "#92d2cc",
          "#f7a9a7",
          "#92d2cc",
          "#92d2cc",
          "#f7a9a7",
          "#f7a9a7",
          "#f7a9a7",
          "#f7a9a7",
          "#92d2cc",
          "#f7a9a7",
          "#92d2cc",
          "#f7a9a7",
          "#f7a9a7",
          "#f7a9a7",
          "#f7a9a7",
          "#92d2cc",
          "#92d2cc",
          "#f7a9a7",
          "#f7a9a7",
          "#92d2cc",
          "#92d2cc",
          "#f7a9a7",
          "#f7a9a7",
          "#92d2cc",
          "#f7a9a7",
          "#f7a9a7",
          "#92d2cc",
          "#92d2cc",
          "#f7a9a7",
          "#f7a9a7",
          "#92d2cc",
          "#92d2cc",
          "#92d2cc",
          "#f7a9a7",
          "#f7a9a7",
          "#f7a9a7",
          "#f7a9a7",
          "#f7a9a7",
          "#92d2cc",
          "#92d2cc",
          "#92d2cc",
          "#f7a9a7",
          "#92d2cc",
          "#92d2cc",
          "#92d2cc",
          "#92d2cc",
          "#92d2cc",
          "#f7a9a7",
          "#92d2cc",
          "#92d2cc",
          "#92d2cc",
          "#f7a9a7",
          "#92d2cc",
          "#92d2cc",
          "#f7a9a7",
          "#92d2cc",
          "#f7a9a7",
          "#92d2cc",
          "#f7a9a7",
          "#f7a9a7",
          "#92d2cc",
          "#f7a9a7",
          "#f7a9a7",
          "#92d2cc",
          "#92d2cc",
          "#f7a9a7",
          "#92d2cc",
          "#f7a9a7",
          "#f7a9a7",
          "#f7a9a7",
          "#f7a9a7",
          "#92d2cc",
          "#f7a9a7",
          "#92d2cc",
          "#f7a9a7",
          "#f7a9a7",
          "#f7a9a7",
          "#f7a9a7",
          "#92d2cc",
          "#92d2cc",
          "#92d2cc",
          "#f7a9a7",
          "#92d2cc",
          "#f7a9a7",
          "#f7a9a7",
          "#f7a9a7",
          "#f7a9a7",
          null,
          null,
          null,
          null,
          null,
          null,
          null,
          null,
          null
        ]
      }
    ],
    "ylim": [
      0.0747,
      0.1328
    ],
    "yticks": [
      {
        "value": 0.08,
        "label": "0.0800"
      },
      {
        "value": 0.085,
        "label": "0.0850"
      },
      {
        "value": 0.09,
        "label": "0.0900"
      },
      {
        "value": 0.095,
        "label": "0.0950"
      },
      {
        "value": 0.1,
        "label": "0.1000"
      },
      {
        "value": 0.105,
        "label": "0.1050"
      },
      {
        "value": 0.11,
        "label": "0.1100"
      },
      {
        "value": 0.115,
        "label": "0.1150"
      },
      {
        "value": 0.12,
        "label": "0.1200"
      },
      {
        "value": 0.125,
        "label": "0.1250"
      },
      {
        "value": 0.13,
        "label": "0.1300"
      }
    ],
    "y2lim": [
      0,
      165
    ],
    "y2ticks": [
      {
        "value": 1.84,
        "label": "1.84 M"
      }
    ],
    "ref_lines": [
      {
        "axis": "y",
        "value": 0.109,
        "label": "0.1090",
        "color": "#f23645",
        "line_style": "dotted"
      }
    ],
    "grid": true
  }
}
